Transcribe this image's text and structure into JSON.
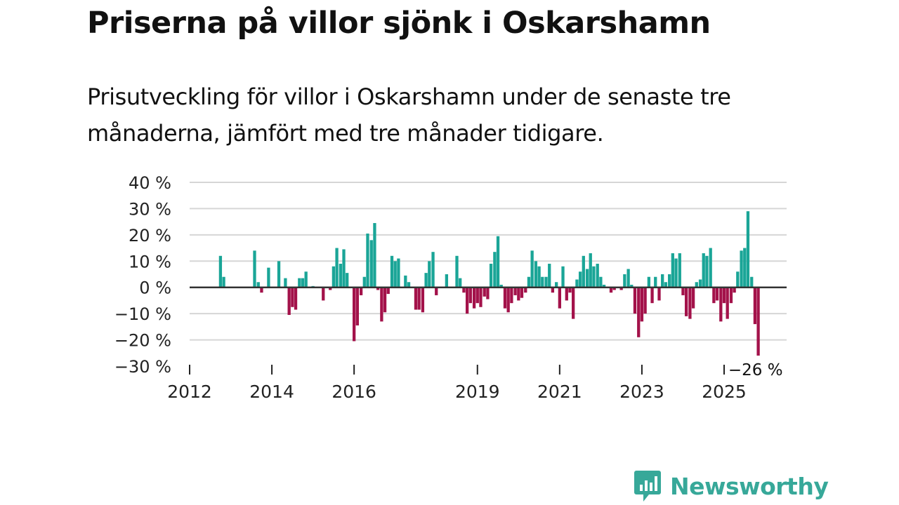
{
  "title": "Priserna på villor sjönk i Oskarshamn",
  "subtitle": "Prisutveckling för villor i Oskarshamn under de senaste tre månaderna, jämfört med tre månader tidigare.",
  "brand": {
    "name": "Newsworthy",
    "icon": "newsworthy-logo-icon",
    "color": "#37a899"
  },
  "colors": {
    "positive": "#1aa597",
    "negative": "#a3124a",
    "baseline": "#333333",
    "grid": "#d6d6d6"
  },
  "chart_data": {
    "type": "bar",
    "title": "Priserna på villor sjönk i Oskarshamn",
    "xlabel": "",
    "ylabel": "",
    "ylim": [
      -30,
      40
    ],
    "yticks": [
      40,
      30,
      20,
      10,
      0,
      -10,
      -20,
      -30
    ],
    "ytick_labels": [
      "40 %",
      "30 %",
      "20 %",
      "10 %",
      "0 %",
      "−10 %",
      "−20 %",
      "−30 %"
    ],
    "xticks": [
      2012,
      2014,
      2016,
      2019,
      2021,
      2023,
      2025
    ],
    "xtick_labels": [
      "2012",
      "2014",
      "2016",
      "2019",
      "2021",
      "2023",
      "2025"
    ],
    "x_unit": "year (decimal)",
    "last_label": "−26 %",
    "series": [
      {
        "name": "Prisutveckling",
        "points": [
          [
            2012.75,
            12
          ],
          [
            2012.83,
            4
          ],
          [
            2013.58,
            14
          ],
          [
            2013.67,
            2
          ],
          [
            2013.75,
            -2
          ],
          [
            2013.92,
            7.5
          ],
          [
            2014.17,
            10
          ],
          [
            2014.33,
            3.5
          ],
          [
            2014.42,
            -10.5
          ],
          [
            2014.5,
            -7.5
          ],
          [
            2014.58,
            -8.5
          ],
          [
            2014.67,
            3.5
          ],
          [
            2014.75,
            3.5
          ],
          [
            2014.83,
            6
          ],
          [
            2015.0,
            0.5
          ],
          [
            2015.25,
            -5
          ],
          [
            2015.42,
            -1
          ],
          [
            2015.5,
            8
          ],
          [
            2015.58,
            15
          ],
          [
            2015.67,
            9
          ],
          [
            2015.75,
            14.5
          ],
          [
            2015.83,
            5.5
          ],
          [
            2016.0,
            -20.5
          ],
          [
            2016.08,
            -14.5
          ],
          [
            2016.17,
            -3
          ],
          [
            2016.25,
            4
          ],
          [
            2016.33,
            20.5
          ],
          [
            2016.42,
            18
          ],
          [
            2016.5,
            24.5
          ],
          [
            2016.58,
            -1
          ],
          [
            2016.67,
            -13
          ],
          [
            2016.75,
            -9.5
          ],
          [
            2016.83,
            -2.5
          ],
          [
            2016.92,
            12
          ],
          [
            2017.0,
            10
          ],
          [
            2017.08,
            11
          ],
          [
            2017.25,
            4.5
          ],
          [
            2017.33,
            2
          ],
          [
            2017.5,
            -8.5
          ],
          [
            2017.58,
            -8.5
          ],
          [
            2017.67,
            -9.5
          ],
          [
            2017.75,
            5.5
          ],
          [
            2017.83,
            10
          ],
          [
            2017.92,
            13.5
          ],
          [
            2018.0,
            -3
          ],
          [
            2018.25,
            5
          ],
          [
            2018.5,
            12
          ],
          [
            2018.58,
            3.5
          ],
          [
            2018.67,
            -2
          ],
          [
            2018.75,
            -10
          ],
          [
            2018.83,
            -6
          ],
          [
            2018.92,
            -8
          ],
          [
            2019.0,
            -6
          ],
          [
            2019.08,
            -7.5
          ],
          [
            2019.17,
            -3.5
          ],
          [
            2019.25,
            -4.5
          ],
          [
            2019.33,
            9
          ],
          [
            2019.42,
            13.5
          ],
          [
            2019.5,
            19.5
          ],
          [
            2019.58,
            1
          ],
          [
            2019.67,
            -8
          ],
          [
            2019.75,
            -9.5
          ],
          [
            2019.83,
            -6
          ],
          [
            2019.92,
            -3
          ],
          [
            2020.0,
            -5
          ],
          [
            2020.08,
            -4
          ],
          [
            2020.17,
            -2
          ],
          [
            2020.25,
            4
          ],
          [
            2020.33,
            14
          ],
          [
            2020.42,
            10
          ],
          [
            2020.5,
            8
          ],
          [
            2020.58,
            4
          ],
          [
            2020.67,
            4
          ],
          [
            2020.75,
            9
          ],
          [
            2020.83,
            -2
          ],
          [
            2020.92,
            2
          ],
          [
            2021.0,
            -8
          ],
          [
            2021.08,
            8
          ],
          [
            2021.17,
            -5
          ],
          [
            2021.25,
            -2
          ],
          [
            2021.33,
            -12
          ],
          [
            2021.42,
            3
          ],
          [
            2021.5,
            6
          ],
          [
            2021.58,
            12
          ],
          [
            2021.67,
            7
          ],
          [
            2021.75,
            13
          ],
          [
            2021.83,
            8
          ],
          [
            2021.92,
            9
          ],
          [
            2022.0,
            4
          ],
          [
            2022.08,
            1
          ],
          [
            2022.25,
            -2
          ],
          [
            2022.33,
            -1
          ],
          [
            2022.5,
            -1
          ],
          [
            2022.58,
            5
          ],
          [
            2022.67,
            7
          ],
          [
            2022.75,
            1
          ],
          [
            2022.83,
            -10
          ],
          [
            2022.92,
            -19
          ],
          [
            2023.0,
            -13
          ],
          [
            2023.08,
            -10
          ],
          [
            2023.17,
            4
          ],
          [
            2023.25,
            -6
          ],
          [
            2023.33,
            4
          ],
          [
            2023.42,
            -5
          ],
          [
            2023.5,
            5
          ],
          [
            2023.58,
            2
          ],
          [
            2023.67,
            5
          ],
          [
            2023.75,
            13
          ],
          [
            2023.83,
            11
          ],
          [
            2023.92,
            13
          ],
          [
            2024.0,
            -3
          ],
          [
            2024.08,
            -11
          ],
          [
            2024.17,
            -12
          ],
          [
            2024.25,
            -8
          ],
          [
            2024.33,
            2
          ],
          [
            2024.42,
            3
          ],
          [
            2024.5,
            13
          ],
          [
            2024.58,
            12
          ],
          [
            2024.67,
            15
          ],
          [
            2024.75,
            -6
          ],
          [
            2024.83,
            -5
          ],
          [
            2024.92,
            -13
          ],
          [
            2025.0,
            -6
          ],
          [
            2025.08,
            -12
          ],
          [
            2025.17,
            -6
          ],
          [
            2025.25,
            -2
          ],
          [
            2025.33,
            6
          ],
          [
            2025.42,
            14
          ],
          [
            2025.5,
            15
          ],
          [
            2025.58,
            29
          ],
          [
            2025.67,
            4
          ],
          [
            2025.75,
            -14
          ],
          [
            2025.83,
            -26
          ]
        ]
      }
    ]
  }
}
